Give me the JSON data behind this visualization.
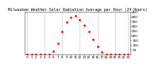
{
  "title": "Milwaukee Weather Solar Radiation Average per Hour (24 Hours)",
  "hours": [
    0,
    1,
    2,
    3,
    4,
    5,
    6,
    7,
    8,
    9,
    10,
    11,
    12,
    13,
    14,
    15,
    16,
    17,
    18,
    19,
    20,
    21,
    22,
    23
  ],
  "values": [
    0,
    0,
    0,
    0,
    0,
    2,
    30,
    120,
    240,
    340,
    390,
    410,
    370,
    310,
    240,
    160,
    80,
    25,
    3,
    0,
    0,
    0,
    0,
    0
  ],
  "line_color": "#ff0000",
  "bg_color": "#ffffff",
  "grid_color": "#888888",
  "ylim": [
    0,
    450
  ],
  "ytick_vals": [
    50,
    100,
    150,
    200,
    250,
    300,
    350,
    400,
    450
  ],
  "ytick_labels": [
    "50",
    "100",
    "150",
    "200",
    "250",
    "300",
    "350",
    "400",
    "450"
  ],
  "xtick_labels": [
    "0",
    "1",
    "2",
    "3",
    "4",
    "5",
    "6",
    "7",
    "8",
    "9",
    "10",
    "11",
    "12",
    "13",
    "14",
    "15",
    "16",
    "17",
    "18",
    "19",
    "20",
    "21",
    "22",
    "23"
  ],
  "title_fontsize": 3.5,
  "tick_fontsize": 3.0,
  "marker": ".",
  "markersize": 2.0,
  "linestyle": "none",
  "linewidth": 0.5,
  "grid_positions": [
    0,
    4,
    8,
    12,
    16,
    20,
    23
  ]
}
